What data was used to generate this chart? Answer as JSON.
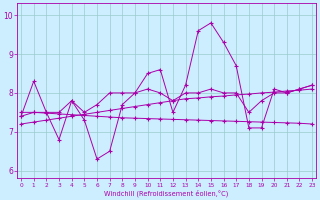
{
  "xlabel": "Windchill (Refroidissement éolien,°C)",
  "background_color": "#cceeff",
  "line_color": "#aa00aa",
  "grid_color": "#99cccc",
  "ylim": [
    5.8,
    10.3
  ],
  "yticks": [
    6,
    7,
    8,
    9,
    10
  ],
  "xticks": [
    0,
    1,
    2,
    3,
    4,
    5,
    6,
    7,
    8,
    9,
    10,
    11,
    12,
    13,
    14,
    15,
    16,
    17,
    18,
    19,
    20,
    21,
    22,
    23
  ],
  "x": [
    0,
    1,
    2,
    3,
    4,
    5,
    6,
    7,
    8,
    9,
    10,
    11,
    12,
    13,
    14,
    15,
    16,
    17,
    18,
    19,
    20,
    21,
    22,
    23
  ],
  "line1": [
    7.4,
    8.3,
    7.5,
    6.8,
    7.8,
    7.3,
    6.3,
    6.5,
    7.7,
    8.0,
    8.5,
    8.6,
    7.5,
    8.2,
    9.6,
    9.8,
    9.3,
    8.7,
    7.1,
    7.1,
    8.1,
    8.0,
    8.1,
    8.2
  ],
  "line2": [
    7.4,
    7.5,
    7.5,
    7.5,
    7.8,
    7.5,
    7.7,
    8.0,
    8.0,
    8.0,
    8.1,
    8.0,
    7.8,
    8.0,
    8.0,
    8.1,
    8.0,
    8.0,
    7.5,
    7.8,
    8.0,
    8.0,
    8.1,
    8.2
  ],
  "line3": [
    7.2,
    7.25,
    7.3,
    7.35,
    7.4,
    7.45,
    7.5,
    7.55,
    7.6,
    7.65,
    7.7,
    7.75,
    7.8,
    7.85,
    7.87,
    7.9,
    7.92,
    7.95,
    7.97,
    8.0,
    8.02,
    8.05,
    8.07,
    8.1
  ],
  "line4": [
    7.5,
    7.5,
    7.48,
    7.46,
    7.44,
    7.42,
    7.4,
    7.38,
    7.36,
    7.35,
    7.34,
    7.33,
    7.32,
    7.31,
    7.3,
    7.29,
    7.28,
    7.27,
    7.26,
    7.25,
    7.24,
    7.23,
    7.22,
    7.2
  ]
}
